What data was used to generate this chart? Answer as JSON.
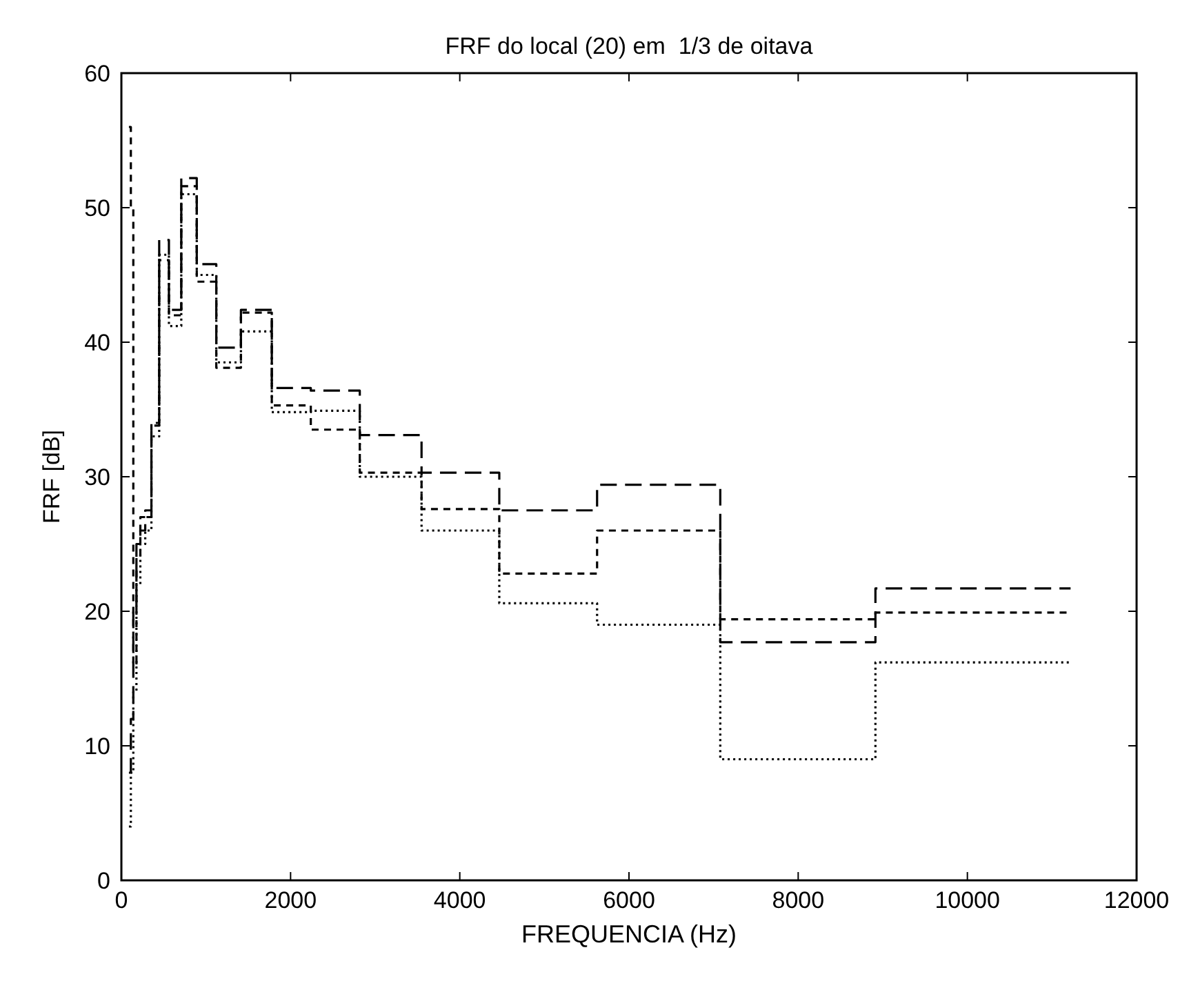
{
  "chart_data": {
    "type": "step",
    "title": "FRF do local (20) em  1/3 de oitava",
    "xlabel": "FREQUENCIA (Hz)",
    "ylabel": "FRF [dB]",
    "x": [
      89,
      112,
      141,
      178,
      224,
      282,
      355,
      447,
      562,
      708,
      891,
      1122,
      1413,
      1778,
      2239,
      2818,
      3548,
      4467,
      5623,
      7079,
      8913,
      11220
    ],
    "series": [
      {
        "color": "#000000",
        "line_style": "dashed",
        "values": [
          8,
          12,
          20,
          25,
          26,
          27,
          33.8,
          47.6,
          42.4,
          52.2,
          45.8,
          39.6,
          42.4,
          36.6,
          36.4,
          33.1,
          30.3,
          27.5,
          29.4,
          17.7,
          21.7,
          21.7
        ]
      },
      {
        "color": "#000000",
        "line_style": "dashed",
        "values": [
          56,
          50,
          16,
          24,
          27,
          27.5,
          34,
          46.1,
          42,
          51.6,
          44.5,
          38.1,
          42.2,
          35.3,
          33.5,
          30.3,
          27.6,
          22.8,
          26,
          19.4,
          19.9,
          19.9
        ]
      },
      {
        "color": "#000000",
        "line_style": "dotted",
        "values": [
          4,
          8,
          14,
          22,
          25,
          26,
          33,
          46.5,
          41.2,
          51,
          45,
          38.5,
          40.8,
          34.8,
          34.9,
          30,
          26,
          20.6,
          19,
          9,
          16.2,
          16.2
        ]
      }
    ],
    "xlim": [
      0,
      12000
    ],
    "xticks": [
      0,
      2000,
      4000,
      6000,
      8000,
      10000,
      12000
    ],
    "ylim": [
      0,
      60
    ],
    "yticks": [
      0,
      10,
      20,
      30,
      40,
      50,
      60
    ],
    "grid": false
  }
}
